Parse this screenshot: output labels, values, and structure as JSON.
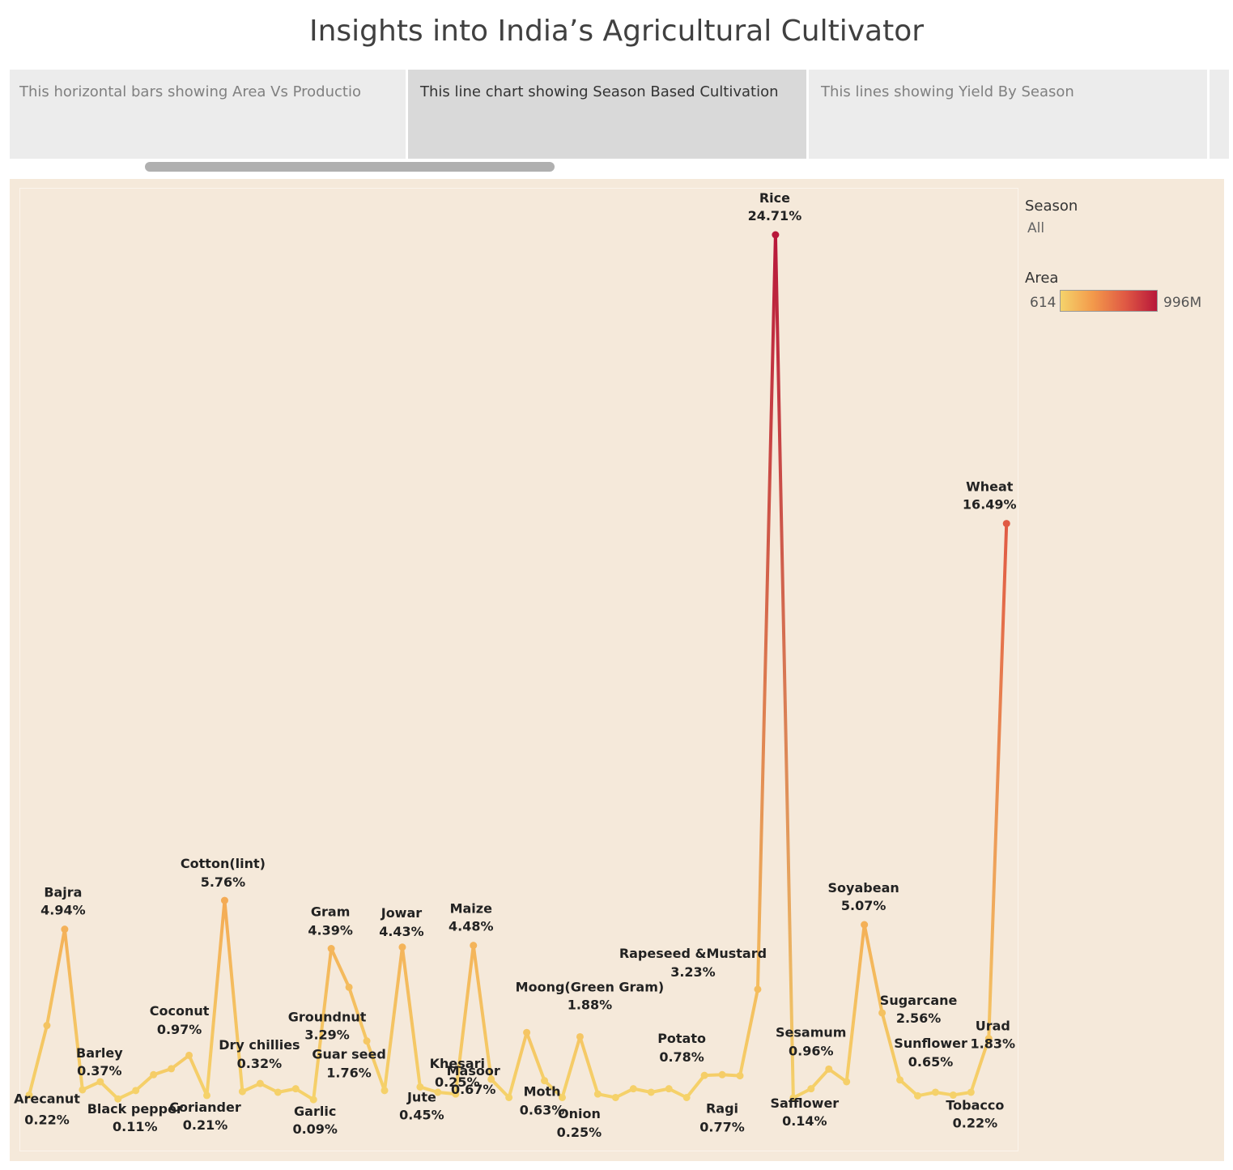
{
  "title": "Insights into India’s Agricultural Cultivator",
  "tabs": [
    {
      "label": "This horizontal bars showing Area Vs Productio",
      "active": false
    },
    {
      "label": "This line chart showing Season Based Cultivation",
      "active": true
    },
    {
      "label": "This lines showing Yield By Season",
      "active": false
    },
    {
      "label": "",
      "active": false
    }
  ],
  "legend": {
    "season_title": "Season",
    "season_value": "All",
    "area_title": "Area",
    "area_min": "614",
    "area_max": "996M",
    "colors": [
      "#f5d36b",
      "#f39a4b",
      "#e05a44",
      "#b8173a"
    ]
  },
  "chart_data": {
    "type": "line",
    "title": "",
    "xlabel": "",
    "ylabel": "",
    "ylim": [
      0,
      25
    ],
    "grid": false,
    "value_unit": "%",
    "points": [
      {
        "crop": "Arecanut",
        "value": 0.22,
        "label": "0.22%"
      },
      {
        "crop": "",
        "value": 2.2,
        "label": ""
      },
      {
        "crop": "Bajra",
        "value": 4.94,
        "label": "4.94%"
      },
      {
        "crop": "Barley",
        "value": 0.37,
        "label": "0.37%"
      },
      {
        "crop": "",
        "value": 0.6,
        "label": ""
      },
      {
        "crop": "Black pepper",
        "value": 0.11,
        "label": "0.11%"
      },
      {
        "crop": "",
        "value": 0.35,
        "label": ""
      },
      {
        "crop": "",
        "value": 0.8,
        "label": ""
      },
      {
        "crop": "Coconut",
        "value": 0.97,
        "label": "0.97%"
      },
      {
        "crop": "",
        "value": 1.35,
        "label": ""
      },
      {
        "crop": "Coriander",
        "value": 0.21,
        "label": "0.21%"
      },
      {
        "crop": "Cotton(lint)",
        "value": 5.76,
        "label": "5.76%"
      },
      {
        "crop": "Dry chillies",
        "value": 0.32,
        "label": "0.32%"
      },
      {
        "crop": "",
        "value": 0.55,
        "label": ""
      },
      {
        "crop": "",
        "value": 0.3,
        "label": ""
      },
      {
        "crop": "",
        "value": 0.4,
        "label": ""
      },
      {
        "crop": "Garlic",
        "value": 0.09,
        "label": "0.09%"
      },
      {
        "crop": "Gram",
        "value": 4.39,
        "label": "4.39%"
      },
      {
        "crop": "Groundnut",
        "value": 3.29,
        "label": "3.29%"
      },
      {
        "crop": "Guar seed",
        "value": 1.76,
        "label": "1.76%"
      },
      {
        "crop": "",
        "value": 0.35,
        "label": ""
      },
      {
        "crop": "Jowar",
        "value": 4.43,
        "label": "4.43%"
      },
      {
        "crop": "Jute",
        "value": 0.45,
        "label": "0.45%"
      },
      {
        "crop": "",
        "value": 0.3,
        "label": ""
      },
      {
        "crop": "Khesari",
        "value": 0.25,
        "label": "0.25%"
      },
      {
        "crop": "Maize",
        "value": 4.48,
        "label": "4.48%"
      },
      {
        "crop": "Masoor",
        "value": 0.67,
        "label": "0.67%"
      },
      {
        "crop": "",
        "value": 0.15,
        "label": ""
      },
      {
        "crop": "",
        "value": 2.0,
        "label": ""
      },
      {
        "crop": "Moth",
        "value": 0.63,
        "label": "0.63%"
      },
      {
        "crop": "",
        "value": 0.15,
        "label": ""
      },
      {
        "crop": "Moong(Green Gram)",
        "value": 1.88,
        "label": "1.88%"
      },
      {
        "crop": "Onion",
        "value": 0.25,
        "label": "0.25%"
      },
      {
        "crop": "",
        "value": 0.15,
        "label": ""
      },
      {
        "crop": "",
        "value": 0.4,
        "label": ""
      },
      {
        "crop": "",
        "value": 0.3,
        "label": ""
      },
      {
        "crop": "",
        "value": 0.4,
        "label": ""
      },
      {
        "crop": "",
        "value": 0.15,
        "label": ""
      },
      {
        "crop": "Potato",
        "value": 0.78,
        "label": "0.78%"
      },
      {
        "crop": "",
        "value": 0.8,
        "label": ""
      },
      {
        "crop": "Ragi",
        "value": 0.77,
        "label": "0.77%"
      },
      {
        "crop": "Rapeseed &Mustard",
        "value": 3.23,
        "label": "3.23%"
      },
      {
        "crop": "Rice",
        "value": 24.71,
        "label": "24.71%"
      },
      {
        "crop": "Safflower",
        "value": 0.14,
        "label": "0.14%"
      },
      {
        "crop": "",
        "value": 0.4,
        "label": ""
      },
      {
        "crop": "Sesamum",
        "value": 0.96,
        "label": "0.96%"
      },
      {
        "crop": "",
        "value": 0.6,
        "label": ""
      },
      {
        "crop": "Soyabean",
        "value": 5.07,
        "label": "5.07%"
      },
      {
        "crop": "Sugarcane",
        "value": 2.56,
        "label": "2.56%"
      },
      {
        "crop": "Sunflower",
        "value": 0.65,
        "label": "0.65%"
      },
      {
        "crop": "",
        "value": 0.2,
        "label": ""
      },
      {
        "crop": "",
        "value": 0.3,
        "label": ""
      },
      {
        "crop": "Tobacco",
        "value": 0.22,
        "label": "0.22%"
      },
      {
        "crop": "",
        "value": 0.3,
        "label": ""
      },
      {
        "crop": "Urad",
        "value": 1.83,
        "label": "1.83%"
      },
      {
        "crop": "Wheat",
        "value": 16.49,
        "label": "16.49%"
      }
    ]
  }
}
